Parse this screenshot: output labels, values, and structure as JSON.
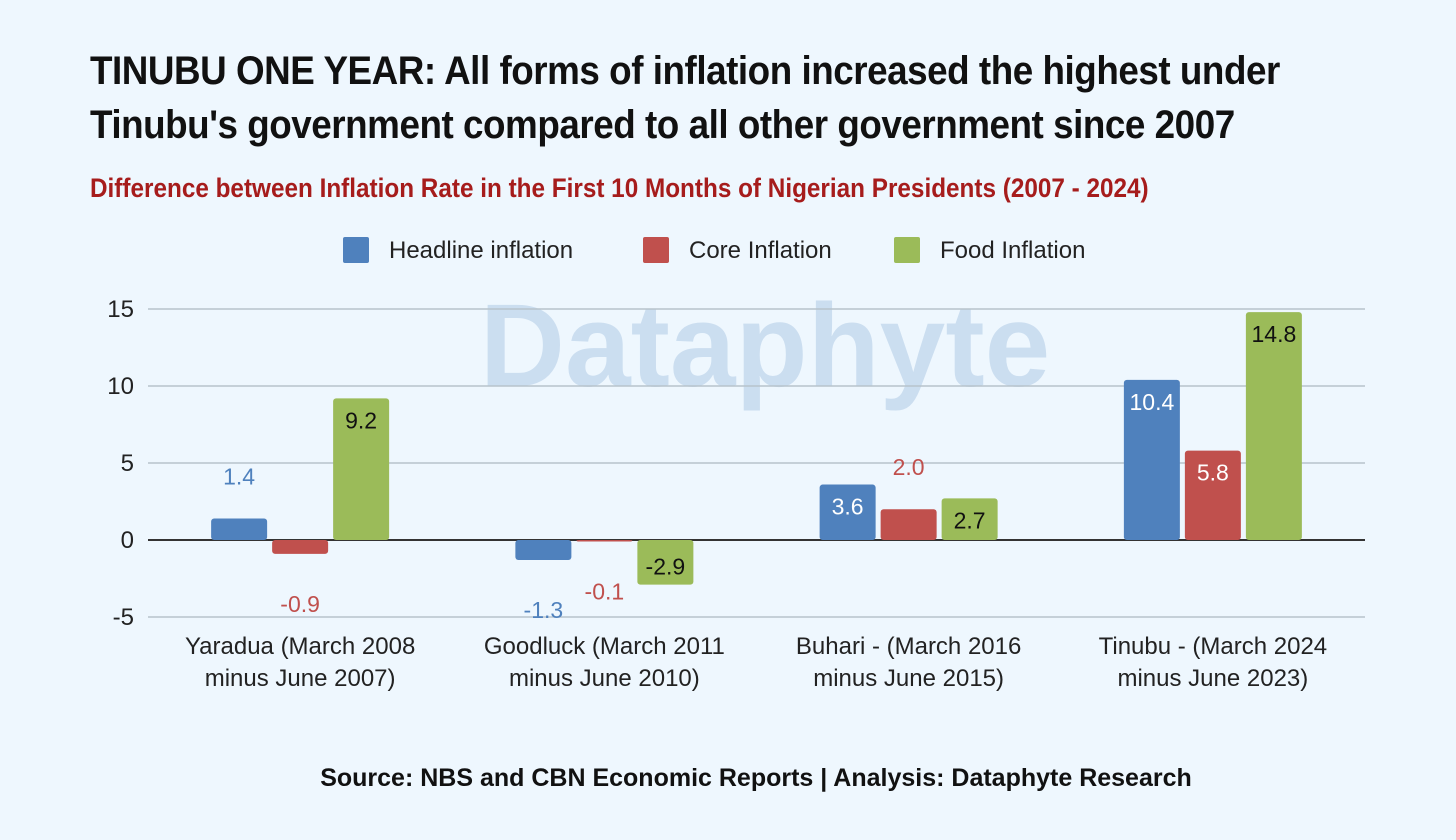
{
  "title": "TINUBU ONE YEAR: All forms of inflation increased the highest under Tinubu's government compared to all other government since 2007",
  "watermark": "Dataphyte",
  "source": "Source: NBS and CBN Economic Reports | Analysis: Dataphyte Research",
  "colors": {
    "headline": "#4f81bd",
    "core": "#c0504d",
    "food": "#9bbb59",
    "subtitle": "#a61c1c",
    "watermark": "#c6daee",
    "grid": "#b7c3cc",
    "zero_line": "#333333"
  },
  "chart_data": {
    "type": "bar",
    "title": "Difference between Inflation Rate in the First 10 Months of Nigerian Presidents (2007 - 2024)",
    "xlabel": "",
    "ylabel": "",
    "ylim": [
      -5,
      15
    ],
    "yticks": [
      15,
      10,
      5,
      0,
      -5
    ],
    "grid": true,
    "legend_position": "top",
    "categories": [
      "Yaradua (March 2008 minus June 2007)",
      "Goodluck (March 2011 minus June 2010)",
      "Buhari - (March 2016 minus June 2015)",
      "Tinubu - (March 2024 minus June 2023)"
    ],
    "series": [
      {
        "name": "Headline inflation",
        "values": [
          1.4,
          -1.3,
          3.6,
          10.4
        ],
        "labels": [
          "1.4",
          "-1.3",
          "3.6",
          "10.4"
        ]
      },
      {
        "name": "Core Inflation",
        "values": [
          -0.9,
          -0.1,
          2.0,
          5.8
        ],
        "labels": [
          "-0.9",
          "-0.1",
          "2.0",
          "5.8"
        ]
      },
      {
        "name": "Food Inflation",
        "values": [
          9.2,
          -2.9,
          2.7,
          14.8
        ],
        "labels": [
          "9.2",
          "-2.9",
          "2.7",
          "14.8"
        ]
      }
    ]
  }
}
